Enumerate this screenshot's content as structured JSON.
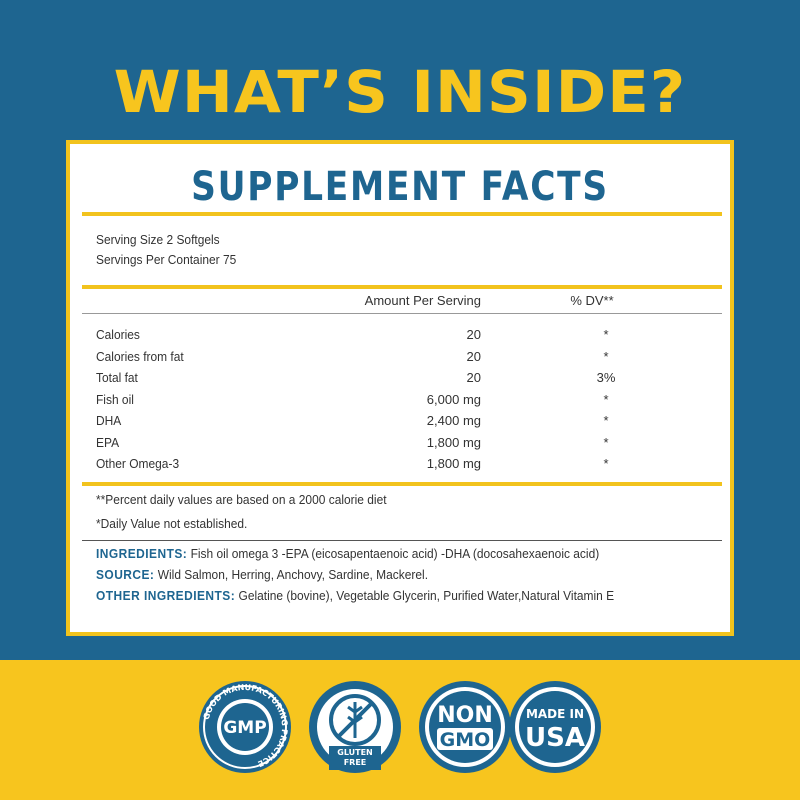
{
  "header": {
    "title": "WHAT’S INSIDE?"
  },
  "facts": {
    "title": "SUPPLEMENT FACTS",
    "serving": [
      "Serving Size 2 Softgels",
      "Servings Per Container 75"
    ],
    "columns": [
      "Amount Per Serving",
      "% DV**"
    ],
    "rows": [
      [
        "Calories",
        "20",
        "*"
      ],
      [
        "Calories from fat",
        "20",
        "*"
      ],
      [
        "Total fat",
        "20",
        "3%"
      ],
      [
        "Fish oil",
        "6,000 mg",
        "*"
      ],
      [
        "DHA",
        "2,400 mg",
        "*"
      ],
      [
        "EPA",
        "1,800 mg",
        "*"
      ],
      [
        "Other Omega-3",
        "1,800 mg",
        "*"
      ]
    ],
    "notes": [
      "**Percent daily values are based on a 2000 calorie diet",
      "*Daily Value not established."
    ]
  },
  "ingredients": [
    {
      "label": "INGREDIENTS:",
      "text": "Fish oil omega 3 -EPA (eicosapentaenoic acid) -DHA (docosahexaenoic acid)"
    },
    {
      "label": "SOURCE:",
      "text": "Wild Salmon, Herring, Anchovy, Sardine, Mackerel."
    },
    {
      "label": "OTHER INGREDIENTS:",
      "text": "Gelatine (bovine), Vegetable Glycerin, Purified Water,Natural Vitamin E"
    }
  ],
  "badges": [
    {
      "ring": "GOOD MANUFACTURING PRACTICE",
      "lines": [
        "GMP"
      ]
    },
    {
      "lines": [
        "GLUTEN",
        "FREE"
      ]
    },
    {
      "lines": [
        "NON",
        "GMO"
      ]
    },
    {
      "lines": [
        "MADE IN",
        "USA"
      ]
    }
  ]
}
